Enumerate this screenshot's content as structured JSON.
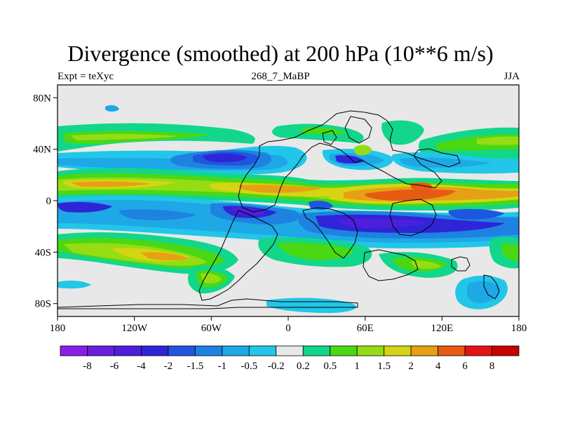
{
  "title": "Divergence (smoothed) at 200 hPa (10**6 m/s)",
  "left_label": "Expt = teXyc",
  "center_label": "268_7_MaBP",
  "right_label": "JJA",
  "axes": {
    "x_ticks": [
      "180",
      "120W",
      "60W",
      "0",
      "60E",
      "120E",
      "180"
    ],
    "y_ticks": [
      "80N",
      "40N",
      "0",
      "40S",
      "80S"
    ]
  },
  "colorbar": {
    "levels": [
      "-8",
      "-6",
      "-4",
      "-2",
      "-1.5",
      "-1",
      "-0.5",
      "-0.2",
      "0.2",
      "0.5",
      "1",
      "1.5",
      "2",
      "4",
      "6",
      "8"
    ],
    "colors": [
      "#8a1fe6",
      "#6a1fe0",
      "#4d1fdc",
      "#2f25d6",
      "#1e56e0",
      "#1e82e0",
      "#1ea8e6",
      "#22c6e8",
      "#e8e8e8",
      "#12d68a",
      "#4ad814",
      "#96dc14",
      "#d6d414",
      "#e6a014",
      "#e65a14",
      "#e01414",
      "#c80000"
    ]
  },
  "map_colors": {
    "ocean_background": "#e8e8e8",
    "coastline": "#000000"
  }
}
